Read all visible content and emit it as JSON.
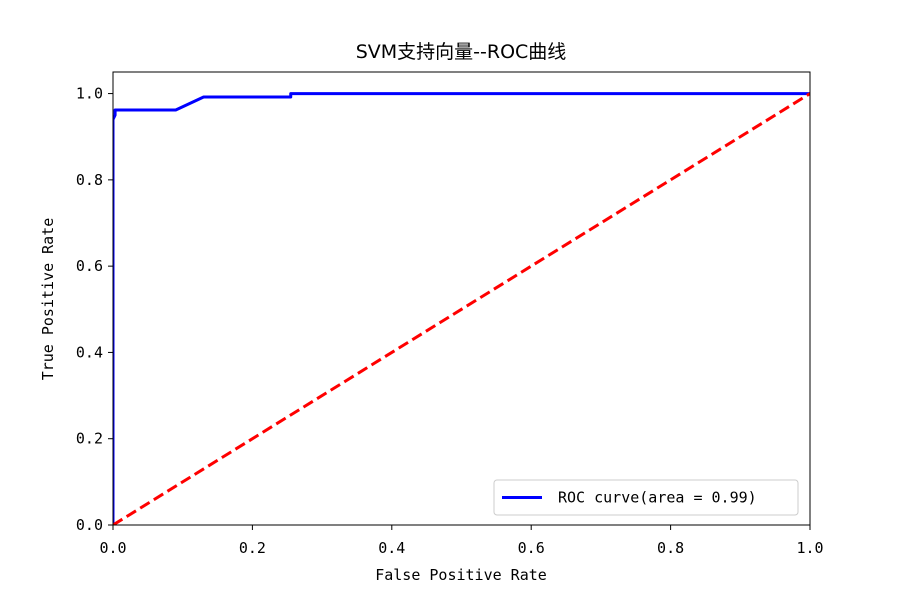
{
  "chart_data": {
    "type": "line",
    "title": "SVM支持向量--ROC曲线",
    "xlabel": "False Positive Rate",
    "ylabel": "True Positive Rate",
    "xlim": [
      0.0,
      1.0
    ],
    "ylim": [
      0.0,
      1.05
    ],
    "xticks": [
      "0.0",
      "0.2",
      "0.4",
      "0.6",
      "0.8",
      "1.0"
    ],
    "yticks": [
      "0.0",
      "0.2",
      "0.4",
      "0.6",
      "0.8",
      "1.0"
    ],
    "grid": false,
    "legend_position": "lower-right",
    "series": [
      {
        "name": "ROC curve(area = 0.99)",
        "color": "#0000ff",
        "style": "solid",
        "x": [
          0.0,
          0.0,
          0.003,
          0.003,
          0.09,
          0.13,
          0.255,
          0.255,
          1.0
        ],
        "y": [
          0.0,
          0.94,
          0.95,
          0.962,
          0.962,
          0.992,
          0.992,
          1.0,
          1.0
        ]
      },
      {
        "name": "",
        "color": "#ff0000",
        "style": "dashed",
        "x": [
          0.0,
          1.0
        ],
        "y": [
          0.0,
          1.0
        ]
      }
    ]
  }
}
